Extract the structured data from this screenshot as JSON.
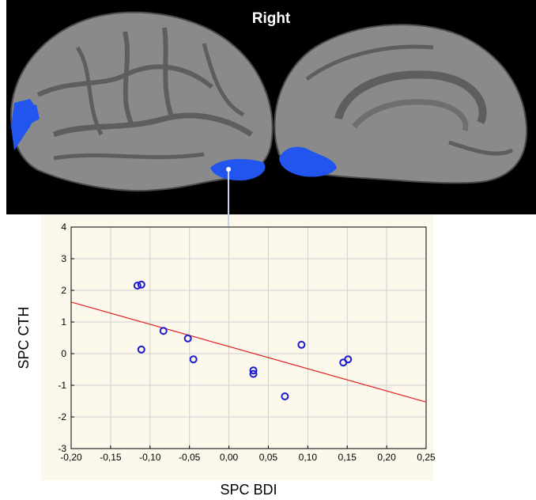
{
  "figure": {
    "hemisphere_title": "Right"
  },
  "colors": {
    "brain_background": "#000000",
    "cortex_gray": "#8a8a8a",
    "sulcus_gray": "#5e5e5e",
    "highlight_blue": "#2255ee",
    "point_color": "#1a1acc",
    "regression_line": "#e02020",
    "plot_background": "#fdf8ec",
    "grid": "#d0d0d0"
  },
  "chart_data": {
    "type": "scatter",
    "xlabel": "SPC BDI",
    "ylabel": "SPC CTH",
    "xlim": [
      -0.2,
      0.25
    ],
    "ylim": [
      -3,
      4
    ],
    "x_ticks": [
      "-0,20",
      "-0,15",
      "-0,10",
      "-0,05",
      "0,00",
      "0,05",
      "0,10",
      "0,15",
      "0,20",
      "0,25"
    ],
    "y_ticks": [
      "-3",
      "-2",
      "-1",
      "0",
      "1",
      "2",
      "3",
      "4"
    ],
    "grid": true,
    "points": [
      {
        "x": -0.116,
        "y": 2.15
      },
      {
        "x": -0.111,
        "y": 2.18
      },
      {
        "x": -0.111,
        "y": 0.13
      },
      {
        "x": -0.083,
        "y": 0.72
      },
      {
        "x": -0.052,
        "y": 0.48
      },
      {
        "x": -0.045,
        "y": -0.18
      },
      {
        "x": 0.031,
        "y": -0.53
      },
      {
        "x": 0.031,
        "y": -0.64
      },
      {
        "x": 0.071,
        "y": -1.35
      },
      {
        "x": 0.092,
        "y": 0.28
      },
      {
        "x": 0.145,
        "y": -0.28
      },
      {
        "x": 0.151,
        "y": -0.18
      }
    ],
    "regression_line": {
      "x": [
        -0.2,
        0.25
      ],
      "y": [
        1.63,
        -1.53
      ]
    }
  }
}
